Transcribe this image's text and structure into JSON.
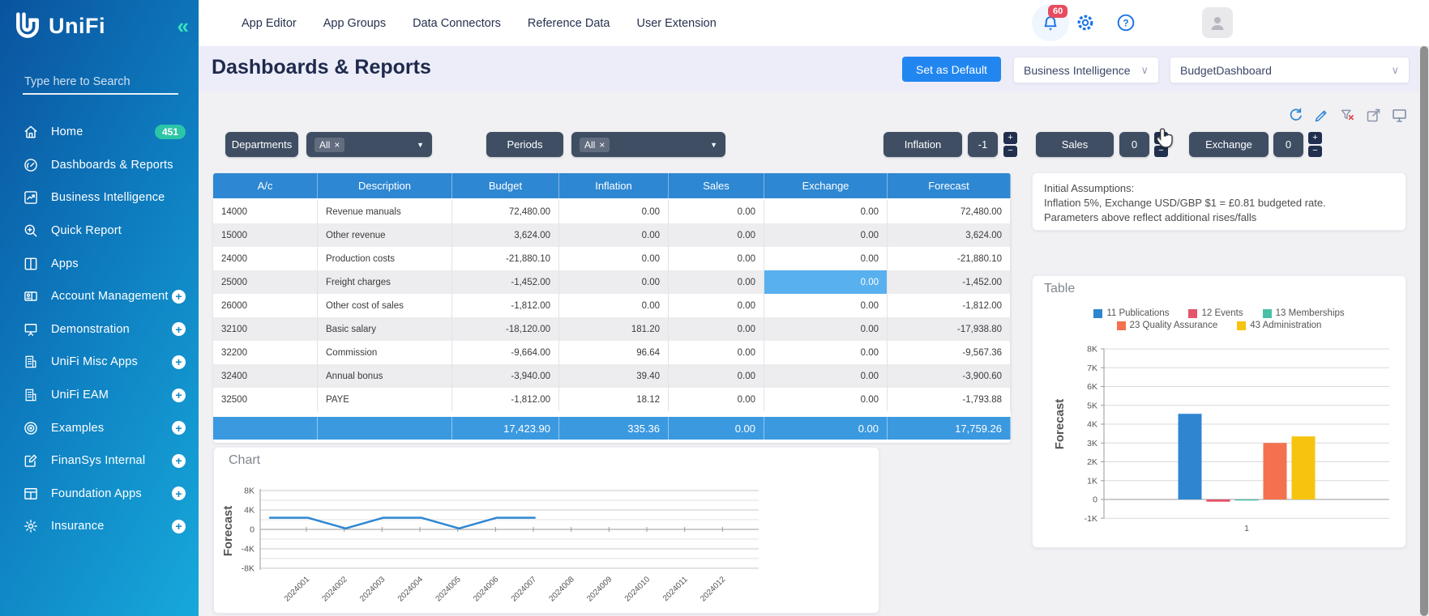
{
  "ui": {
    "caret_down": "▼",
    "chevron_down": "∨",
    "collapse_glyph": "«",
    "inc_glyph": "+",
    "dec_glyph": "−",
    "remove_glyph": "×"
  },
  "colors": {
    "accent_blue": "#2186f0",
    "table_header_blue": "#2e87d2",
    "totals_blue": "#3b99e0",
    "highlight_cell_blue": "#58b0ef",
    "filter_pill_slate": "#3f4e63",
    "badge_teal": "#2cc5a6",
    "notification_red": "#e84b5e",
    "sidebar_gradient_start": "#0a539e",
    "sidebar_gradient_end": "#17a9da"
  },
  "sidebar": {
    "brand": "UniFi",
    "search_placeholder": "Type here to Search",
    "items": [
      {
        "label": "Home",
        "icon": "home-icon",
        "badge": "451"
      },
      {
        "label": "Dashboards & Reports",
        "icon": "dashboard-gauge-icon"
      },
      {
        "label": "Business Intelligence",
        "icon": "chart-trend-icon"
      },
      {
        "label": "Quick Report",
        "icon": "magnifier-plus-icon"
      },
      {
        "label": "Apps",
        "icon": "columns-icon"
      },
      {
        "label": "Account Management",
        "icon": "id-badge-icon",
        "expandable": true
      },
      {
        "label": "Demonstration",
        "icon": "presentation-icon",
        "expandable": true
      },
      {
        "label": "UniFi Misc Apps",
        "icon": "building-icon",
        "expandable": true
      },
      {
        "label": "UniFi EAM",
        "icon": "building-icon",
        "expandable": true
      },
      {
        "label": "Examples",
        "icon": "globe-icon",
        "expandable": true
      },
      {
        "label": "FinanSys Internal",
        "icon": "edit-square-icon",
        "expandable": true
      },
      {
        "label": "Foundation Apps",
        "icon": "table-grid-icon",
        "expandable": true
      },
      {
        "label": "Insurance",
        "icon": "gear-icon",
        "expandable": true
      }
    ]
  },
  "topnav": {
    "links": [
      "App Editor",
      "App Groups",
      "Data Connectors",
      "Reference Data",
      "User Extension"
    ],
    "notification_count": "60"
  },
  "header": {
    "title": "Dashboards & Reports",
    "default_button": "Set as Default",
    "category_select": "Business Intelligence",
    "dashboard_select": "BudgetDashboard"
  },
  "toolbar_icons": [
    {
      "icon": "refresh-icon"
    },
    {
      "icon": "pencil-icon"
    },
    {
      "icon": "clear-filter-icon"
    },
    {
      "icon": "select-expand-icon"
    },
    {
      "icon": "present-screen-icon"
    }
  ],
  "filters": {
    "selects": [
      {
        "label": "Departments",
        "chip": "All"
      },
      {
        "label": "Periods",
        "chip": "All"
      }
    ],
    "steppers": [
      {
        "label": "Inflation",
        "value": "-1"
      },
      {
        "label": "Sales",
        "value": "0"
      },
      {
        "label": "Exchange",
        "value": "0"
      }
    ]
  },
  "table": {
    "columns": [
      "A/c",
      "Description",
      "Budget",
      "Inflation",
      "Sales",
      "Exchange",
      "Forecast"
    ],
    "rows": [
      [
        "14000",
        "Revenue manuals",
        "72,480.00",
        "0.00",
        "0.00",
        "0.00",
        "72,480.00"
      ],
      [
        "15000",
        "Other revenue",
        "3,624.00",
        "0.00",
        "0.00",
        "0.00",
        "3,624.00"
      ],
      [
        "24000",
        "Production costs",
        "-21,880.10",
        "0.00",
        "0.00",
        "0.00",
        "-21,880.10"
      ],
      [
        "25000",
        "Freight charges",
        "-1,452.00",
        "0.00",
        "0.00",
        "0.00",
        "-1,452.00"
      ],
      [
        "26000",
        "Other cost of sales",
        "-1,812.00",
        "0.00",
        "0.00",
        "0.00",
        "-1,812.00"
      ],
      [
        "32100",
        "Basic salary",
        "-18,120.00",
        "181.20",
        "0.00",
        "0.00",
        "-17,938.80"
      ],
      [
        "32200",
        "Commission",
        "-9,664.00",
        "96.64",
        "0.00",
        "0.00",
        "-9,567.36"
      ],
      [
        "32400",
        "Annual bonus",
        "-3,940.00",
        "39.40",
        "0.00",
        "0.00",
        "-3,900.60"
      ],
      [
        "32500",
        "PAYE",
        "-1,812.00",
        "18.12",
        "0.00",
        "0.00",
        "-1,793.88"
      ]
    ],
    "totals": [
      "",
      "",
      "17,423.90",
      "335.36",
      "0.00",
      "0.00",
      "17,759.26"
    ],
    "highlighted_cell": {
      "row": 3,
      "col": 5
    }
  },
  "assumptions": {
    "lines": [
      "Initial Assumptions:",
      "Inflation 5%, Exchange USD/GBP $1 = £0.81 budgeted rate.",
      "Parameters above reflect additional rises/falls"
    ]
  },
  "chart_data": [
    {
      "type": "line",
      "title": "Chart",
      "ylabel": "Forecast",
      "x_labels": [
        "2024001",
        "2024002",
        "2024003",
        "2024004",
        "2024005",
        "2024006",
        "2024007",
        "2024008",
        "2024009",
        "2024010",
        "2024011",
        "2024012"
      ],
      "series": [
        {
          "name": "Forecast",
          "color": "#2f87d2",
          "values": [
            2400,
            2400,
            200,
            2400,
            2400,
            200,
            2400,
            2400,
            null,
            null,
            null,
            null
          ]
        }
      ],
      "ylim": [
        -8000,
        8000
      ],
      "ytick_labels": [
        "8K",
        "4K",
        "0",
        "-4K",
        "-8K"
      ],
      "grid": true,
      "legend_position": "none"
    },
    {
      "type": "bar",
      "title": "Table",
      "ylabel": "Forecast",
      "categories": [
        "1"
      ],
      "series": [
        {
          "name": "11 Publications",
          "color": "#2e86d0",
          "values": [
            4550
          ]
        },
        {
          "name": "12 Events",
          "color": "#e4546a",
          "values": [
            -120
          ]
        },
        {
          "name": "13 Memberships",
          "color": "#49bfa8",
          "values": [
            -60
          ]
        },
        {
          "name": "23 Quality Assurance",
          "color": "#f3714f",
          "values": [
            3000
          ]
        },
        {
          "name": "43 Administration",
          "color": "#f6c40e",
          "values": [
            3350
          ]
        }
      ],
      "ylim": [
        -1000,
        8000
      ],
      "ytick_labels": [
        "8K",
        "7K",
        "6K",
        "5K",
        "4K",
        "3K",
        "2K",
        "1K",
        "0",
        "-1K"
      ],
      "grid": true,
      "legend_position": "top",
      "legend_rows": [
        3,
        2
      ]
    }
  ]
}
